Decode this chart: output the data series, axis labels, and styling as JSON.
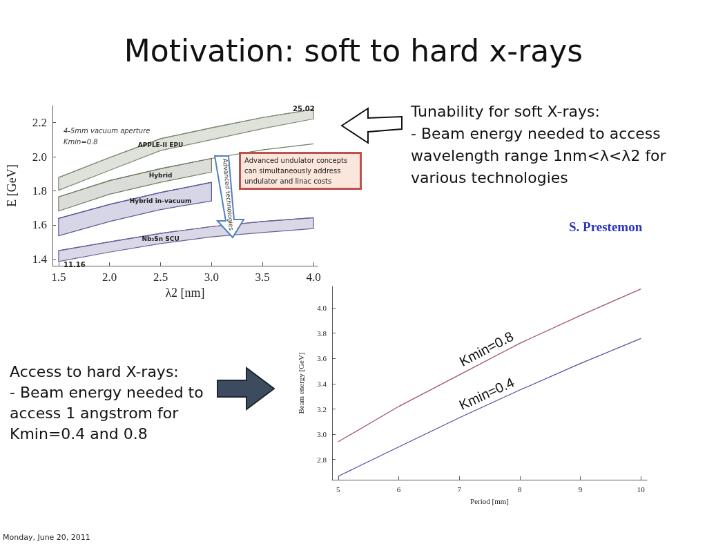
{
  "chart_data": [
    {
      "type": "line",
      "title": "Motivation: soft to hard x-rays",
      "xlabel": "λ2 [nm]",
      "ylabel": "E [GeV]",
      "x": [
        1.5,
        2.0,
        2.5,
        3.0,
        3.5,
        4.0
      ],
      "xlim": [
        1.44,
        4.04
      ],
      "ylim": [
        1.36,
        2.3
      ],
      "xticks": [
        {
          "value": 1.5,
          "label": "1.5"
        },
        {
          "value": 2,
          "label": "2.0"
        },
        {
          "value": 2.5,
          "label": "2.5"
        },
        {
          "value": 3,
          "label": "3.0"
        },
        {
          "value": 3.5,
          "label": "3.5"
        },
        {
          "value": 4,
          "label": "4.0"
        }
      ],
      "yticks": [
        {
          "value": 1.4,
          "label": "1.4"
        },
        {
          "value": 1.6,
          "label": "1.6"
        },
        {
          "value": 1.8,
          "label": "1.8"
        },
        {
          "value": 2,
          "label": "2.0"
        },
        {
          "value": 2.2,
          "label": "2.2"
        }
      ],
      "grid": false,
      "legend": false,
      "marker": "none",
      "line_style": "solid",
      "series": [
        {
          "name": "APPLE-II EPU",
          "color": "#7d8a6f",
          "values": [
            1.878,
            1.995,
            2.106,
            2.17,
            2.23,
            2.278
          ],
          "lower": [
            1.803,
            1.92,
            2.036,
            2.1,
            2.165,
            2.222
          ],
          "upper": [
            1.878,
            1.995,
            2.106,
            2.17,
            2.23,
            2.278
          ]
        },
        {
          "name": "Hybrid",
          "color": "#6f7d62",
          "values": [
            1.764,
            1.86,
            1.93,
            1.99,
            2.04,
            2.076
          ],
          "lower": [
            1.681,
            1.78,
            1.85,
            1.91,
            null,
            null
          ],
          "upper": [
            1.764,
            1.86,
            1.93,
            1.99,
            null,
            null
          ]
        },
        {
          "name": "Hybrid in-vacuum",
          "color": "#5b5b9a",
          "values": [
            1.638,
            1.72,
            1.79,
            1.85,
            null,
            null
          ],
          "lower": [
            1.536,
            1.62,
            1.69,
            1.74,
            null,
            null
          ],
          "upper": [
            1.638,
            1.72,
            1.79,
            1.85,
            null,
            null
          ]
        },
        {
          "name": "Nb₃Sn SCU",
          "color": "#6a5f9a",
          "values": [
            1.449,
            1.5,
            1.55,
            1.59,
            1.62,
            1.642
          ],
          "lower": [
            1.385,
            1.44,
            1.49,
            1.53,
            1.555,
            1.578
          ],
          "upper": [
            1.449,
            1.5,
            1.55,
            1.59,
            1.62,
            1.642
          ]
        }
      ],
      "annotations": [
        "4-5mm vacuum aperture",
        "Kmin=0.8",
        "25.02",
        "11.16",
        "Advanced undulator concepts can simultaneously address undulator and linac costs",
        "Advanced technologies",
        "Tunability for soft X-rays:\n- Beam energy needed to access wavelength range 1nm<λ<λ2 for various technologies",
        "S. Prestemon",
        "Monday, June 20, 2011"
      ]
    },
    {
      "type": "line",
      "xlabel": "Period [mm]",
      "ylabel": "Beam energy [GeV]",
      "x": [
        5,
        6,
        7,
        8,
        9,
        10
      ],
      "xlim": [
        4.9,
        10.1
      ],
      "ylim": [
        2.64,
        4.17
      ],
      "xticks": [
        5,
        6,
        7,
        8,
        9,
        10
      ],
      "yticks": [
        2.8,
        {
          "value": 3,
          "label": "3.0"
        },
        3.2,
        3.4,
        3.6,
        3.8,
        {
          "value": 4,
          "label": "4.0"
        }
      ],
      "grid": false,
      "legend": false,
      "marker": "none",
      "line_style": "solid",
      "series": [
        {
          "name": "Kmin=0.8",
          "color": "#a0506e",
          "values": [
            2.94,
            3.22,
            3.47,
            3.72,
            3.94,
            4.15
          ]
        },
        {
          "name": "Kmin=0.4",
          "color": "#4a4ea0",
          "values": [
            2.667,
            2.9,
            3.13,
            3.35,
            3.56,
            3.758
          ]
        }
      ],
      "annotations": [
        "Access to hard X-rays:\n- Beam energy needed to\naccess 1 angstrom for\nKmin=0.4 and 0.8"
      ]
    }
  ]
}
